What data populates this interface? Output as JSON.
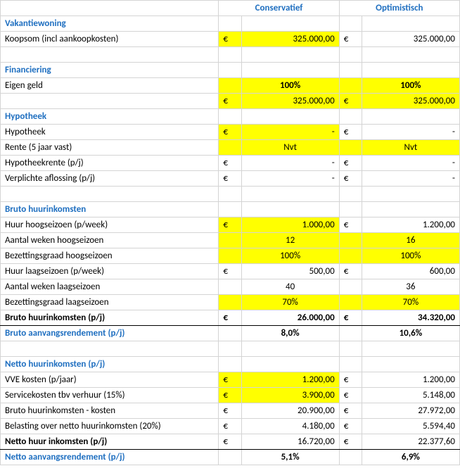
{
  "colors": {
    "accent": "#1f6fc0",
    "highlight": "#ffff00",
    "grid": "#d4d4d4"
  },
  "headers": {
    "col1": "Conservatief",
    "col2": "Optimistisch"
  },
  "curr": "€",
  "s1": {
    "title": "Vakantiewoning",
    "r1": {
      "label": "Koopsom (incl aankoopkosten)",
      "v1": "325.000,00",
      "v2": "325.000,00"
    }
  },
  "s2": {
    "title": "Financiering",
    "r1": {
      "label": "Eigen geld",
      "v1": "100%",
      "v2": "100%"
    },
    "r2": {
      "v1": "325.000,00",
      "v2": "325.000,00"
    }
  },
  "s3": {
    "title": "Hypotheek",
    "r1": {
      "label": "Hypotheek",
      "v1": "-",
      "v2": "-"
    },
    "r2": {
      "label": "Rente (5 jaar vast)",
      "v1": "Nvt",
      "v2": "Nvt"
    },
    "r3": {
      "label": "Hypotheekrente (p/j)",
      "v1": "-",
      "v2": "-"
    },
    "r4": {
      "label": "Verplichte aflossing (p/j)",
      "v1": "-",
      "v2": "-"
    }
  },
  "s4": {
    "title": "Bruto huurinkomsten",
    "r1": {
      "label": "Huur hoogseizoen (p/week)",
      "v1": "1.000,00",
      "v2": "1.200,00"
    },
    "r2": {
      "label": "Aantal weken hoogseizoen",
      "v1": "12",
      "v2": "16"
    },
    "r3": {
      "label": "Bezettingsgraad hoogseizoen",
      "v1": "100%",
      "v2": "100%"
    },
    "r4": {
      "label": "Huur laagseizoen (p/week)",
      "v1": "500,00",
      "v2": "600,00"
    },
    "r5": {
      "label": "Aantal weken laagseizoen",
      "v1": "40",
      "v2": "36"
    },
    "r6": {
      "label": "Bezettingsgraad laagseizoen",
      "v1": "70%",
      "v2": "70%"
    },
    "r7": {
      "label": "Bruto huurinkomsten (p/j)",
      "v1": "26.000,00",
      "v2": "34.320,00"
    },
    "r8": {
      "label": "Bruto aanvangsrendement (p/j)",
      "v1": "8,0%",
      "v2": "10,6%"
    }
  },
  "s5": {
    "title": "Netto huurinkomsten (p/j)",
    "r1": {
      "label": "VVE kosten (p/jaar)",
      "v1": "1.200,00",
      "v2": "1.200,00"
    },
    "r2": {
      "label": "Servicekosten tbv verhuur (15%)",
      "v1": "3.900,00",
      "v2": "5.148,00"
    },
    "r3": {
      "label": "Bruto huurinkomsten - kosten",
      "v1": "20.900,00",
      "v2": "27.972,00"
    },
    "r4": {
      "label": "Belasting over netto huurinkomsten (20%)",
      "v1": "4.180,00",
      "v2": "5.594,40"
    },
    "r5": {
      "label": "Netto huur inkomsten (p/j)",
      "v1": "16.720,00",
      "v2": "22.377,60"
    },
    "r6": {
      "label": "Netto aanvangsrendement (p/j)",
      "v1": "5,1%",
      "v2": "6,9%"
    }
  }
}
